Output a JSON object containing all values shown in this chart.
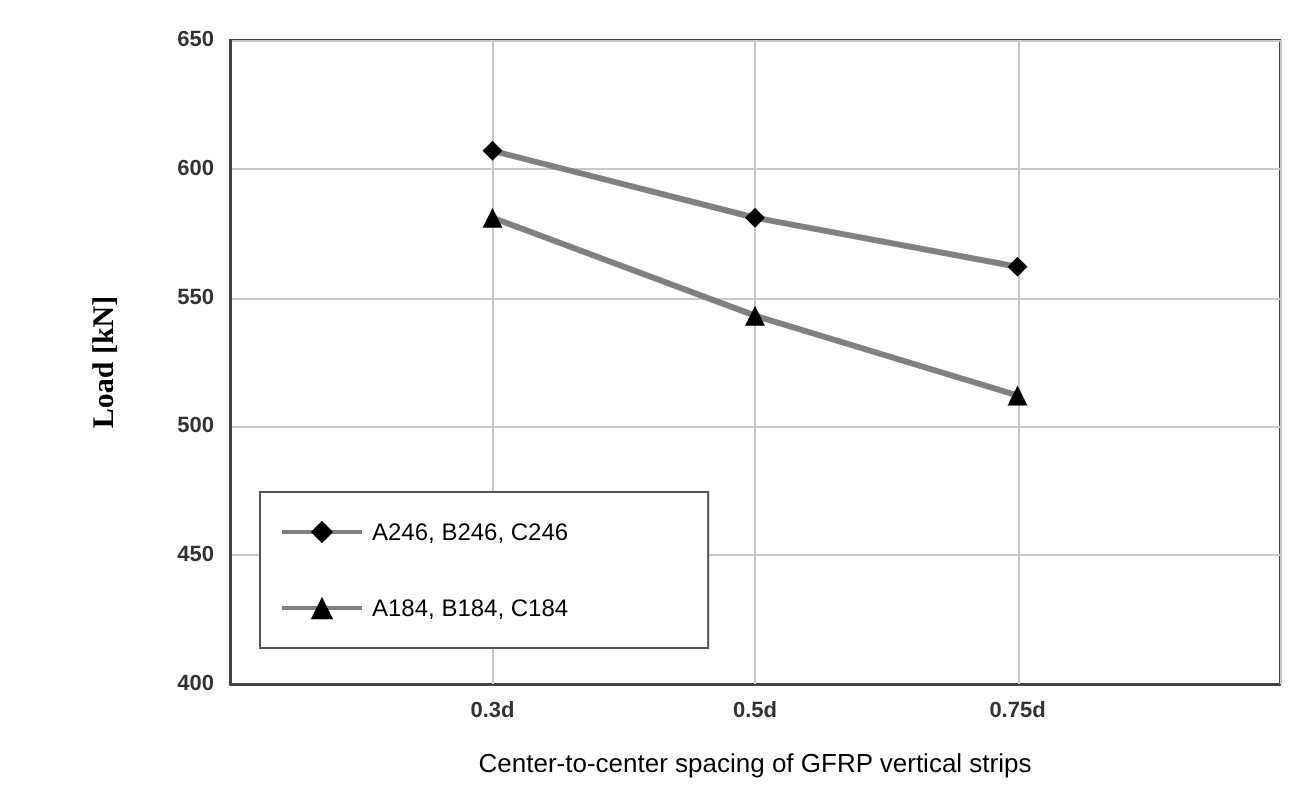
{
  "chart_data": {
    "type": "line",
    "xlabel": "Center-to-center spacing of GFRP vertical strips",
    "ylabel": "Load [kN]",
    "categories": [
      null,
      "0.3d",
      "0.5d",
      "0.75d",
      null
    ],
    "series": [
      {
        "name": "A246, B246, C246",
        "color": "#808080",
        "marker": "diamond",
        "values": [
          null,
          607,
          581,
          562,
          null
        ]
      },
      {
        "name": "A184, B184, C184",
        "color": "#808080",
        "marker": "triangle",
        "values": [
          null,
          581,
          543,
          512,
          null
        ]
      }
    ],
    "ylim": [
      400,
      650
    ],
    "yticks": [
      400,
      450,
      500,
      550,
      600,
      650
    ],
    "grid": true,
    "legend": "bottom left"
  }
}
